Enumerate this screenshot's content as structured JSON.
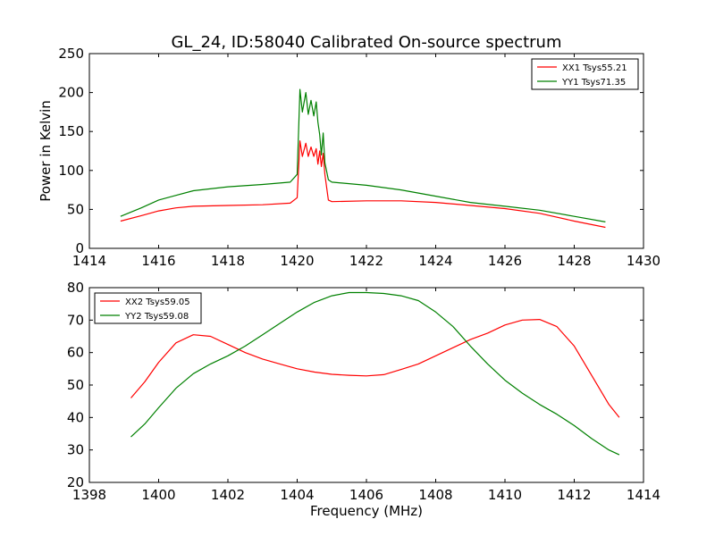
{
  "title": "GL_24, ID:58040 Calibrated On-source spectrum",
  "chart_data": [
    {
      "type": "line",
      "xlim": [
        1414,
        1430
      ],
      "ylim": [
        0,
        250
      ],
      "xticks": [
        "1414",
        "1416",
        "1418",
        "1420",
        "1422",
        "1424",
        "1426",
        "1428",
        "1430"
      ],
      "yticks": [
        "0",
        "50",
        "100",
        "150",
        "200",
        "250"
      ],
      "xlabel": "",
      "ylabel": "Power in Kelvin",
      "legend_position": "top-right",
      "grid": false,
      "series": [
        {
          "name": "XX1 Tsys55.21",
          "color": "#ff0000",
          "x": [
            1414.9,
            1415.5,
            1416,
            1416.5,
            1417,
            1418,
            1419,
            1419.8,
            1420.0,
            1420.08,
            1420.15,
            1420.25,
            1420.32,
            1420.4,
            1420.48,
            1420.55,
            1420.6,
            1420.65,
            1420.7,
            1420.75,
            1420.8,
            1420.9,
            1421,
            1422,
            1423,
            1424,
            1425,
            1426,
            1427,
            1428,
            1428.9
          ],
          "values": [
            35,
            42,
            48,
            52,
            54,
            55,
            56,
            58,
            65,
            138,
            118,
            135,
            118,
            130,
            118,
            128,
            108,
            125,
            105,
            122,
            95,
            62,
            60,
            61,
            61,
            59,
            55,
            51,
            45,
            35,
            27
          ]
        },
        {
          "name": "YY1 Tsys71.35",
          "color": "#008000",
          "x": [
            1414.9,
            1415.5,
            1416,
            1416.5,
            1417,
            1418,
            1419,
            1419.8,
            1420.0,
            1420.08,
            1420.15,
            1420.25,
            1420.32,
            1420.4,
            1420.48,
            1420.55,
            1420.6,
            1420.65,
            1420.7,
            1420.75,
            1420.8,
            1420.9,
            1421,
            1422,
            1423,
            1424,
            1425,
            1426,
            1427,
            1428,
            1428.9
          ],
          "values": [
            41,
            52,
            62,
            68,
            74,
            79,
            82,
            85,
            95,
            204,
            175,
            200,
            172,
            190,
            170,
            188,
            162,
            146,
            120,
            148,
            110,
            88,
            85,
            81,
            75,
            67,
            59,
            54,
            49,
            41,
            34
          ]
        }
      ]
    },
    {
      "type": "line",
      "xlim": [
        1398,
        1414
      ],
      "ylim": [
        20,
        80
      ],
      "xticks": [
        "1398",
        "1400",
        "1402",
        "1404",
        "1406",
        "1408",
        "1410",
        "1412",
        "1414"
      ],
      "yticks": [
        "20",
        "30",
        "40",
        "50",
        "60",
        "70",
        "80"
      ],
      "xlabel": "Frequency (MHz)",
      "ylabel": "",
      "legend_position": "top-left",
      "grid": false,
      "series": [
        {
          "name": "XX2 Tsys59.05",
          "color": "#ff0000",
          "x": [
            1399.2,
            1399.6,
            1400,
            1400.5,
            1401,
            1401.5,
            1402,
            1402.5,
            1403,
            1403.5,
            1404,
            1404.5,
            1405,
            1405.5,
            1406,
            1406.5,
            1407,
            1407.5,
            1408,
            1408.5,
            1409,
            1409.5,
            1410,
            1410.5,
            1411,
            1411.5,
            1412,
            1412.5,
            1413,
            1413.3
          ],
          "values": [
            46,
            51,
            57,
            63,
            65.5,
            65,
            62.5,
            60,
            58,
            56.5,
            55,
            54,
            53.3,
            53,
            52.8,
            53.2,
            54.8,
            56.5,
            59,
            61.5,
            64,
            66,
            68.5,
            70,
            70.2,
            68,
            62,
            53,
            44,
            40
          ]
        },
        {
          "name": "YY2 Tsys59.08",
          "color": "#008000",
          "x": [
            1399.2,
            1399.6,
            1400,
            1400.5,
            1401,
            1401.5,
            1402,
            1402.5,
            1403,
            1403.5,
            1404,
            1404.5,
            1405,
            1405.5,
            1406,
            1406.5,
            1407,
            1407.5,
            1408,
            1408.5,
            1409,
            1409.5,
            1410,
            1410.5,
            1411,
            1411.5,
            1412,
            1412.5,
            1413,
            1413.3
          ],
          "values": [
            34,
            38,
            43,
            49,
            53.5,
            56.5,
            59,
            62,
            65.5,
            69,
            72.5,
            75.5,
            77.5,
            78.5,
            78.5,
            78.2,
            77.5,
            76,
            72.5,
            68,
            62,
            56.5,
            51.5,
            47.5,
            44,
            41,
            37.5,
            33.5,
            30,
            28.5
          ]
        }
      ]
    }
  ]
}
